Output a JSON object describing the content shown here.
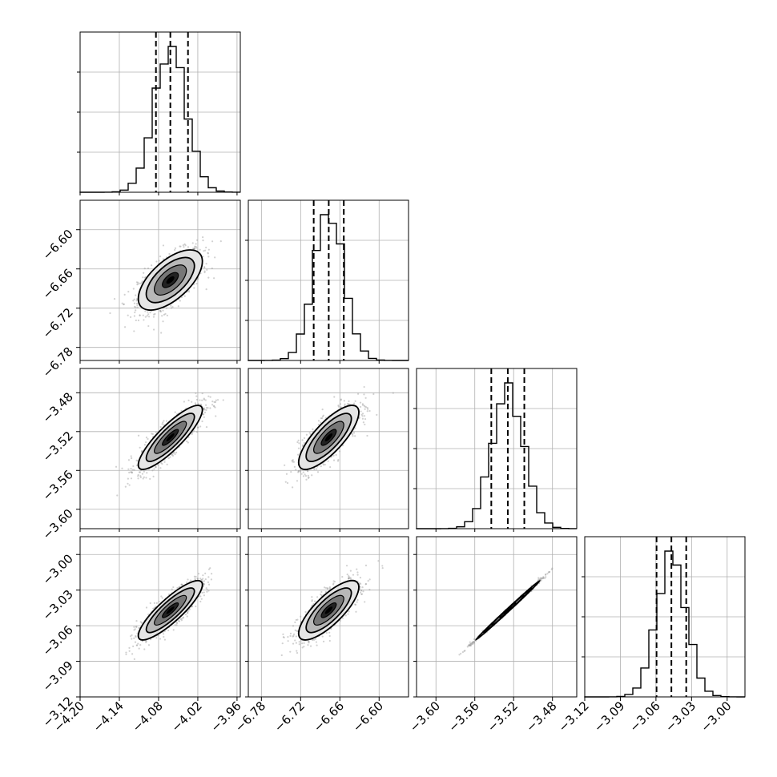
{
  "chart_data": {
    "type": "corner",
    "dim": 4,
    "title": "",
    "axes": [
      {
        "range": [
          -4.2,
          -3.955
        ],
        "ticks": [
          -4.2,
          -4.14,
          -4.08,
          -4.02,
          -3.96
        ],
        "tick_labels": [
          "−4.20",
          "−4.14",
          "−4.08",
          "−4.02",
          "−3.96"
        ],
        "mean": -4.062,
        "sd": 0.0245,
        "quantiles": [
          -4.084,
          -4.062,
          -4.035
        ]
      },
      {
        "range": [
          -6.8,
          -6.555
        ],
        "ticks": [
          -6.78,
          -6.72,
          -6.66,
          -6.6
        ],
        "tick_labels": [
          "−6.78",
          "−6.72",
          "−6.66",
          "−6.60"
        ],
        "mean": -6.677,
        "sd": 0.023,
        "quantiles": [
          -6.7,
          -6.677,
          -6.654
        ]
      },
      {
        "range": [
          -3.62,
          -3.455
        ],
        "ticks": [
          -3.6,
          -3.56,
          -3.52,
          -3.48
        ],
        "tick_labels": [
          "−3.60",
          "−3.56",
          "−3.52",
          "−3.48"
        ],
        "mean": -3.526,
        "sd": 0.0165,
        "quantiles": [
          -3.543,
          -3.526,
          -3.509
        ]
      },
      {
        "range": [
          -3.12,
          -2.985
        ],
        "ticks": [
          -3.12,
          -3.09,
          -3.06,
          -3.03,
          -3.0
        ],
        "tick_labels": [
          "−3.12",
          "−3.09",
          "−3.06",
          "−3.03",
          "−3.00"
        ],
        "mean": -3.047,
        "sd": 0.0125,
        "quantiles": [
          -3.0595,
          -3.047,
          -3.0345
        ]
      }
    ],
    "correlations": [
      [
        1,
        0.62,
        0.86,
        0.86
      ],
      [
        0.62,
        1,
        0.78,
        0.78
      ],
      [
        0.86,
        0.78,
        1,
        0.998
      ],
      [
        0.86,
        0.78,
        0.998,
        1
      ]
    ],
    "grid": true,
    "contour_levels_sigma": [
      0.5,
      1.0,
      1.5,
      2.0
    ],
    "colors": {
      "contour": "#000000",
      "scatter": "#9a9a9a",
      "grid": "#b0b0b0",
      "quantile": "#000000"
    }
  }
}
